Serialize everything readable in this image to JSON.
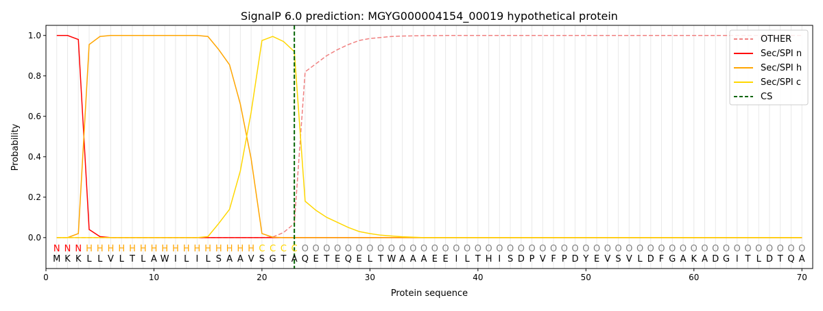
{
  "chart_data": {
    "type": "line",
    "title": "SignalP 6.0 prediction: MGYG000004154_00019 hypothetical protein",
    "xlabel": "Protein sequence",
    "ylabel": "Probability",
    "xlim": [
      0,
      71
    ],
    "ylim": [
      -0.153,
      1.05
    ],
    "xticks": [
      0,
      10,
      20,
      30,
      40,
      50,
      60,
      70
    ],
    "yticks": [
      0.0,
      0.2,
      0.4,
      0.6,
      0.8,
      1.0
    ],
    "ytick_labels": [
      "0.0",
      "0.2",
      "0.4",
      "0.6",
      "0.8",
      "1.0"
    ],
    "legend_position": "top-right",
    "sequence": [
      "M",
      "K",
      "K",
      "L",
      "L",
      "V",
      "L",
      "T",
      "L",
      "A",
      "W",
      "I",
      "L",
      "I",
      "L",
      "S",
      "A",
      "A",
      "V",
      "S",
      "G",
      "T",
      "A",
      "Q",
      "E",
      "T",
      "E",
      "Q",
      "E",
      "L",
      "T",
      "W",
      "A",
      "A",
      "A",
      "E",
      "E",
      "I",
      "L",
      "T",
      "H",
      "I",
      "S",
      "D",
      "P",
      "V",
      "F",
      "P",
      "D",
      "Y",
      "E",
      "V",
      "S",
      "V",
      "L",
      "D",
      "F",
      "G",
      "A",
      "K",
      "A",
      "D",
      "G",
      "I",
      "T",
      "L",
      "D",
      "T",
      "Q",
      "A"
    ],
    "labels": [
      "N",
      "N",
      "N",
      "H",
      "H",
      "H",
      "H",
      "H",
      "H",
      "H",
      "H",
      "H",
      "H",
      "H",
      "H",
      "H",
      "H",
      "H",
      "H",
      "C",
      "C",
      "C",
      "C",
      "O",
      "O",
      "O",
      "O",
      "O",
      "O",
      "O",
      "O",
      "O",
      "O",
      "O",
      "O",
      "O",
      "O",
      "O",
      "O",
      "O",
      "O",
      "O",
      "O",
      "O",
      "O",
      "O",
      "O",
      "O",
      "O",
      "O",
      "O",
      "O",
      "O",
      "O",
      "O",
      "O",
      "O",
      "O",
      "O",
      "O",
      "O",
      "O",
      "O",
      "O",
      "O",
      "O",
      "O",
      "O",
      "O",
      "O"
    ],
    "label_colors": {
      "N": "#ff0000",
      "H": "#ffa500",
      "C": "#ffd700",
      "O": "#808080"
    },
    "cs_position": 23,
    "series": [
      {
        "name": "OTHER",
        "color": "#f08080",
        "dash": true,
        "values": [
          0,
          0,
          0,
          0,
          0,
          0,
          0,
          0,
          0,
          0,
          0,
          0,
          0,
          0,
          0,
          0,
          0,
          0,
          0,
          0,
          0.003,
          0.025,
          0.07,
          0.82,
          0.86,
          0.9,
          0.93,
          0.955,
          0.975,
          0.985,
          0.99,
          0.995,
          0.997,
          0.998,
          0.999,
          0.999,
          1,
          1,
          1,
          1,
          1,
          1,
          1,
          1,
          1,
          1,
          1,
          1,
          1,
          1,
          1,
          1,
          1,
          1,
          1,
          1,
          1,
          1,
          1,
          1,
          1,
          1,
          1,
          1,
          1,
          1,
          1,
          1,
          1,
          1
        ]
      },
      {
        "name": "Sec/SPI n",
        "color": "#ff0000",
        "dash": false,
        "values": [
          1.0,
          1.0,
          0.98,
          0.04,
          0.005,
          0,
          0,
          0,
          0,
          0,
          0,
          0,
          0,
          0,
          0,
          0,
          0,
          0,
          0,
          0,
          0,
          0,
          0,
          0,
          0,
          0,
          0,
          0,
          0,
          0,
          0,
          0,
          0,
          0,
          0,
          0,
          0,
          0,
          0,
          0,
          0,
          0,
          0,
          0,
          0,
          0,
          0,
          0,
          0,
          0,
          0,
          0,
          0,
          0,
          0,
          0,
          0,
          0,
          0,
          0,
          0,
          0,
          0,
          0,
          0,
          0,
          0,
          0,
          0,
          0
        ]
      },
      {
        "name": "Sec/SPI h",
        "color": "#ffa500",
        "dash": false,
        "values": [
          0,
          0,
          0.02,
          0.955,
          0.995,
          1,
          1,
          1,
          1,
          1,
          1,
          1,
          1,
          1,
          0.995,
          0.93,
          0.855,
          0.66,
          0.39,
          0.02,
          0.002,
          0,
          0,
          0,
          0,
          0,
          0,
          0,
          0,
          0,
          0,
          0,
          0,
          0,
          0,
          0,
          0,
          0,
          0,
          0,
          0,
          0,
          0,
          0,
          0,
          0,
          0,
          0,
          0,
          0,
          0,
          0,
          0,
          0,
          0,
          0,
          0,
          0,
          0,
          0,
          0,
          0,
          0,
          0,
          0,
          0,
          0,
          0,
          0,
          0
        ]
      },
      {
        "name": "Sec/SPI c",
        "color": "#ffd700",
        "dash": false,
        "values": [
          0,
          0,
          0,
          0,
          0,
          0,
          0,
          0,
          0,
          0,
          0,
          0,
          0,
          0,
          0.005,
          0.07,
          0.14,
          0.33,
          0.62,
          0.975,
          0.995,
          0.97,
          0.92,
          0.18,
          0.135,
          0.1,
          0.075,
          0.05,
          0.03,
          0.02,
          0.012,
          0.008,
          0.004,
          0.002,
          0,
          0,
          0,
          0,
          0,
          0,
          0,
          0,
          0,
          0,
          0,
          0,
          0,
          0,
          0,
          0,
          0,
          0,
          0,
          0,
          0,
          0,
          0,
          0,
          0,
          0,
          0,
          0,
          0,
          0,
          0,
          0,
          0,
          0,
          0,
          0
        ]
      },
      {
        "name": "CS",
        "color": "#006400",
        "dash": true,
        "vertical": true
      }
    ]
  }
}
